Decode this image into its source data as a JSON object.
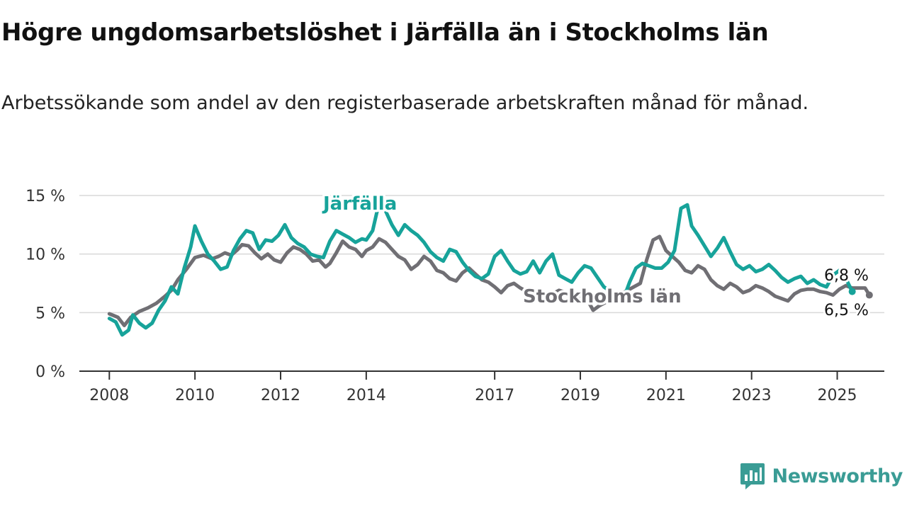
{
  "title": "Högre ungdomsarbetslöshet i Järfälla än i Stockholms län",
  "subtitle": "Arbetssökande som andel av den registerbaserade arbetskraften månad för månad.",
  "brand": {
    "name": "Newsworthy",
    "icon": "newsworthy-logo-icon",
    "color": "#3a9c95"
  },
  "chart_data": {
    "type": "line",
    "ylim": [
      0,
      15
    ],
    "xlim": [
      2007.3,
      2026.1
    ],
    "y_ticks": [
      {
        "value": 0,
        "label": "0 %"
      },
      {
        "value": 5,
        "label": "5 %"
      },
      {
        "value": 10,
        "label": "10 %"
      },
      {
        "value": 15,
        "label": "15 %"
      }
    ],
    "x_ticks": [
      {
        "value": 2008,
        "label": "2008"
      },
      {
        "value": 2010,
        "label": "2010"
      },
      {
        "value": 2012,
        "label": "2012"
      },
      {
        "value": 2014,
        "label": "2014"
      },
      {
        "value": 2017,
        "label": "2017"
      },
      {
        "value": 2019,
        "label": "2019"
      },
      {
        "value": 2021,
        "label": "2021"
      },
      {
        "value": 2023,
        "label": "2023"
      },
      {
        "value": 2025,
        "label": "2025"
      }
    ],
    "grid": true,
    "series": [
      {
        "name": "Stockholms län",
        "color": "#706f74",
        "end_label": "6,5 %",
        "points": [
          [
            2008.0,
            4.9
          ],
          [
            2008.2,
            4.6
          ],
          [
            2008.35,
            3.9
          ],
          [
            2008.5,
            4.6
          ],
          [
            2008.7,
            5.1
          ],
          [
            2008.9,
            5.4
          ],
          [
            2009.1,
            5.8
          ],
          [
            2009.3,
            6.4
          ],
          [
            2009.45,
            6.9
          ],
          [
            2009.6,
            7.8
          ],
          [
            2009.8,
            8.7
          ],
          [
            2010.0,
            9.7
          ],
          [
            2010.2,
            9.9
          ],
          [
            2010.4,
            9.6
          ],
          [
            2010.55,
            9.8
          ],
          [
            2010.7,
            10.1
          ],
          [
            2010.85,
            9.9
          ],
          [
            2011.0,
            10.4
          ],
          [
            2011.1,
            10.8
          ],
          [
            2011.25,
            10.7
          ],
          [
            2011.4,
            10.1
          ],
          [
            2011.55,
            9.6
          ],
          [
            2011.7,
            10.0
          ],
          [
            2011.85,
            9.5
          ],
          [
            2012.0,
            9.3
          ],
          [
            2012.15,
            10.1
          ],
          [
            2012.3,
            10.6
          ],
          [
            2012.45,
            10.4
          ],
          [
            2012.6,
            10.0
          ],
          [
            2012.75,
            9.4
          ],
          [
            2012.9,
            9.5
          ],
          [
            2013.05,
            8.9
          ],
          [
            2013.15,
            9.2
          ],
          [
            2013.3,
            10.1
          ],
          [
            2013.45,
            11.1
          ],
          [
            2013.6,
            10.6
          ],
          [
            2013.75,
            10.4
          ],
          [
            2013.9,
            9.8
          ],
          [
            2014.0,
            10.3
          ],
          [
            2014.15,
            10.6
          ],
          [
            2014.3,
            11.3
          ],
          [
            2014.45,
            11.0
          ],
          [
            2014.6,
            10.4
          ],
          [
            2014.75,
            9.8
          ],
          [
            2014.9,
            9.5
          ],
          [
            2015.05,
            8.7
          ],
          [
            2015.2,
            9.1
          ],
          [
            2015.35,
            9.8
          ],
          [
            2015.5,
            9.4
          ],
          [
            2015.65,
            8.6
          ],
          [
            2015.8,
            8.4
          ],
          [
            2015.95,
            7.9
          ],
          [
            2016.1,
            7.7
          ],
          [
            2016.25,
            8.4
          ],
          [
            2016.4,
            8.8
          ],
          [
            2016.55,
            8.3
          ],
          [
            2016.7,
            7.8
          ],
          [
            2016.85,
            7.6
          ],
          [
            2017.0,
            7.2
          ],
          [
            2017.15,
            6.7
          ],
          [
            2017.3,
            7.3
          ],
          [
            2017.45,
            7.5
          ],
          [
            2017.6,
            7.1
          ],
          [
            2017.75,
            6.8
          ],
          [
            2017.9,
            6.6
          ],
          [
            2018.05,
            6.2
          ],
          [
            2018.2,
            6.4
          ],
          [
            2018.35,
            6.6
          ],
          [
            2018.5,
            6.9
          ],
          [
            2019.15,
            6.2
          ],
          [
            2019.3,
            5.2
          ],
          [
            2019.45,
            5.6
          ],
          [
            2020.4,
            7.5
          ],
          [
            2020.55,
            9.5
          ],
          [
            2020.7,
            11.2
          ],
          [
            2020.85,
            11.5
          ],
          [
            2021.0,
            10.3
          ],
          [
            2021.15,
            9.8
          ],
          [
            2021.3,
            9.3
          ],
          [
            2021.45,
            8.6
          ],
          [
            2021.6,
            8.4
          ],
          [
            2021.75,
            9.0
          ],
          [
            2021.9,
            8.7
          ],
          [
            2022.05,
            7.8
          ],
          [
            2022.2,
            7.3
          ],
          [
            2022.35,
            7.0
          ],
          [
            2022.5,
            7.5
          ],
          [
            2022.65,
            7.2
          ],
          [
            2022.8,
            6.7
          ],
          [
            2022.95,
            6.9
          ],
          [
            2023.1,
            7.3
          ],
          [
            2023.25,
            7.1
          ],
          [
            2023.4,
            6.8
          ],
          [
            2023.55,
            6.4
          ],
          [
            2023.7,
            6.2
          ],
          [
            2023.85,
            6.0
          ],
          [
            2024.0,
            6.6
          ],
          [
            2024.15,
            6.9
          ],
          [
            2024.3,
            7.0
          ],
          [
            2024.45,
            7.0
          ],
          [
            2024.6,
            6.8
          ],
          [
            2024.75,
            6.7
          ],
          [
            2024.9,
            6.5
          ],
          [
            2025.05,
            7.0
          ],
          [
            2025.2,
            7.3
          ],
          [
            2025.35,
            7.1
          ],
          [
            2025.5,
            7.1
          ],
          [
            2025.65,
            7.1
          ],
          [
            2025.75,
            6.5
          ]
        ]
      },
      {
        "name": "Järfälla",
        "color": "#17a39a",
        "end_label": "6,8 %",
        "points": [
          [
            2008.0,
            4.5
          ],
          [
            2008.15,
            4.2
          ],
          [
            2008.3,
            3.1
          ],
          [
            2008.45,
            3.5
          ],
          [
            2008.55,
            4.8
          ],
          [
            2008.7,
            4.1
          ],
          [
            2008.85,
            3.7
          ],
          [
            2009.0,
            4.1
          ],
          [
            2009.15,
            5.2
          ],
          [
            2009.3,
            6.0
          ],
          [
            2009.45,
            7.2
          ],
          [
            2009.6,
            6.6
          ],
          [
            2009.75,
            8.8
          ],
          [
            2009.9,
            10.6
          ],
          [
            2010.0,
            12.4
          ],
          [
            2010.15,
            11.1
          ],
          [
            2010.3,
            10.0
          ],
          [
            2010.45,
            9.4
          ],
          [
            2010.6,
            8.7
          ],
          [
            2010.75,
            8.9
          ],
          [
            2010.9,
            10.3
          ],
          [
            2011.05,
            11.3
          ],
          [
            2011.2,
            12.0
          ],
          [
            2011.35,
            11.8
          ],
          [
            2011.5,
            10.4
          ],
          [
            2011.65,
            11.2
          ],
          [
            2011.8,
            11.1
          ],
          [
            2011.95,
            11.6
          ],
          [
            2012.1,
            12.5
          ],
          [
            2012.25,
            11.4
          ],
          [
            2012.4,
            10.9
          ],
          [
            2012.55,
            10.6
          ],
          [
            2012.7,
            10.0
          ],
          [
            2012.85,
            9.8
          ],
          [
            2013.0,
            9.7
          ],
          [
            2013.15,
            11.1
          ],
          [
            2013.3,
            12.0
          ],
          [
            2013.45,
            11.7
          ],
          [
            2013.6,
            11.4
          ],
          [
            2013.75,
            11.0
          ],
          [
            2013.9,
            11.3
          ],
          [
            2014.0,
            11.2
          ],
          [
            2014.15,
            12.0
          ],
          [
            2014.3,
            14.4
          ],
          [
            2014.45,
            13.7
          ],
          [
            2014.6,
            12.5
          ],
          [
            2014.75,
            11.6
          ],
          [
            2014.9,
            12.5
          ],
          [
            2015.05,
            12.0
          ],
          [
            2015.2,
            11.6
          ],
          [
            2015.35,
            11.0
          ],
          [
            2015.5,
            10.2
          ],
          [
            2015.65,
            9.7
          ],
          [
            2015.8,
            9.4
          ],
          [
            2015.95,
            10.4
          ],
          [
            2016.1,
            10.2
          ],
          [
            2016.25,
            9.3
          ],
          [
            2016.4,
            8.6
          ],
          [
            2016.55,
            8.1
          ],
          [
            2016.7,
            7.9
          ],
          [
            2016.85,
            8.3
          ],
          [
            2017.0,
            9.8
          ],
          [
            2017.15,
            10.3
          ],
          [
            2017.3,
            9.4
          ],
          [
            2017.45,
            8.6
          ],
          [
            2017.6,
            8.3
          ],
          [
            2017.75,
            8.5
          ],
          [
            2017.9,
            9.4
          ],
          [
            2018.05,
            8.4
          ],
          [
            2018.2,
            9.4
          ],
          [
            2018.35,
            10.0
          ],
          [
            2018.5,
            8.2
          ],
          [
            2018.65,
            7.9
          ],
          [
            2018.8,
            7.6
          ],
          [
            2018.95,
            8.4
          ],
          [
            2019.1,
            9.0
          ],
          [
            2019.25,
            8.8
          ],
          [
            2019.4,
            8.0
          ],
          [
            2019.55,
            7.2
          ],
          [
            2020.0,
            6.1
          ],
          [
            2020.15,
            7.6
          ],
          [
            2020.3,
            8.8
          ],
          [
            2020.45,
            9.2
          ],
          [
            2020.6,
            9.0
          ],
          [
            2020.75,
            8.8
          ],
          [
            2020.9,
            8.8
          ],
          [
            2021.05,
            9.3
          ],
          [
            2021.2,
            10.3
          ],
          [
            2021.35,
            13.9
          ],
          [
            2021.5,
            14.2
          ],
          [
            2021.6,
            12.4
          ],
          [
            2021.75,
            11.6
          ],
          [
            2021.9,
            10.7
          ],
          [
            2022.05,
            9.8
          ],
          [
            2022.2,
            10.5
          ],
          [
            2022.35,
            11.4
          ],
          [
            2022.5,
            10.2
          ],
          [
            2022.65,
            9.1
          ],
          [
            2022.8,
            8.7
          ],
          [
            2022.95,
            9.0
          ],
          [
            2023.1,
            8.5
          ],
          [
            2023.25,
            8.7
          ],
          [
            2023.4,
            9.1
          ],
          [
            2023.55,
            8.6
          ],
          [
            2023.7,
            8.0
          ],
          [
            2023.85,
            7.6
          ],
          [
            2024.0,
            7.9
          ],
          [
            2024.15,
            8.1
          ],
          [
            2024.3,
            7.5
          ],
          [
            2024.45,
            7.8
          ],
          [
            2024.6,
            7.4
          ],
          [
            2024.75,
            7.2
          ],
          [
            2024.9,
            8.2
          ],
          [
            2025.05,
            8.6
          ],
          [
            2025.15,
            8.3
          ],
          [
            2025.35,
            6.8
          ]
        ]
      }
    ]
  }
}
